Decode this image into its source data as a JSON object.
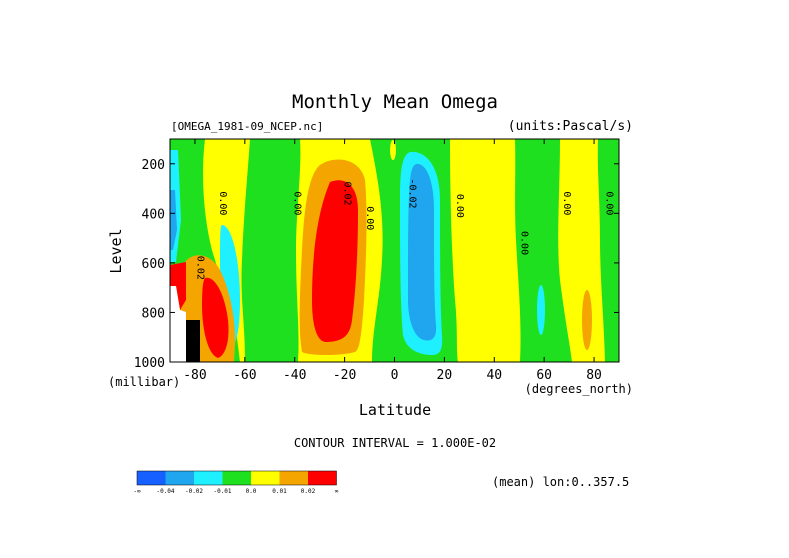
{
  "chart_data": {
    "type": "heatmap",
    "title": "Monthly Mean Omega",
    "file_label": "[OMEGA_1981-09_NCEP.nc]",
    "units_label": "(units:Pascal/s)",
    "xlabel": "Latitude",
    "x_unit": "(degrees_north)",
    "ylabel": "Level",
    "y_unit": "(millibar)",
    "xlim": [
      -90,
      90
    ],
    "ylim": [
      1000,
      100
    ],
    "y_scale": "linear",
    "x_ticks": [
      "-80",
      "-60",
      "-40",
      "-20",
      "0",
      "20",
      "40",
      "60",
      "80"
    ],
    "x_tick_values": [
      -80,
      -60,
      -40,
      -20,
      0,
      20,
      40,
      60,
      80
    ],
    "y_ticks": [
      "200",
      "400",
      "600",
      "800",
      "1000"
    ],
    "y_tick_values": [
      200,
      400,
      600,
      800,
      1000
    ],
    "contour_interval_text": "CONTOUR INTERVAL = 1.000E-02",
    "mean_text": "(mean) lon:0..357.5",
    "contour_labels": [
      {
        "text": "0.00",
        "lat": -70,
        "lev": 360
      },
      {
        "text": "0.00",
        "lat": -40,
        "lev": 360
      },
      {
        "text": "0.02",
        "lat": -20,
        "lev": 320
      },
      {
        "text": "0.00",
        "lat": -11,
        "lev": 420
      },
      {
        "text": "-0.02",
        "lat": 6,
        "lev": 320
      },
      {
        "text": "0.00",
        "lat": 25,
        "lev": 370
      },
      {
        "text": "0.00",
        "lat": 51,
        "lev": 520
      },
      {
        "text": "0.00",
        "lat": 68,
        "lev": 360
      },
      {
        "text": "0.00",
        "lat": 85,
        "lev": 360
      },
      {
        "text": "0.02",
        "lat": -79,
        "lev": 620
      }
    ],
    "colorbar": {
      "colors": [
        "#1560ff",
        "#1fa6ee",
        "#1ff0ff",
        "#1fe01f",
        "#ffff00",
        "#f5a500",
        "#ff0000"
      ],
      "labels": [
        "-∞",
        "-0.04",
        "-0.02",
        "-0.01",
        "0.0",
        "0.01",
        "0.02",
        "∞"
      ]
    },
    "regions_note": "filled contour bands of omega (Pa/s) by latitude and pressure level",
    "regions": [
      {
        "lev_top": 100,
        "lev_bot": 1000,
        "lat_w": -90,
        "lat_e": 90,
        "band": "yellow"
      },
      {
        "lev_top": 100,
        "lev_bot": 1000,
        "lat_w": -85,
        "lat_e": -66,
        "band": "green"
      },
      {
        "lev_top": 100,
        "lev_bot": 1000,
        "lat_w": -55,
        "lat_e": -32,
        "band": "green"
      },
      {
        "lev_top": 100,
        "lev_bot": 1000,
        "lat_w": -6,
        "lat_e": 30,
        "band": "green"
      },
      {
        "lev_top": 100,
        "lev_bot": 1000,
        "lat_w": 40,
        "lat_e": 63,
        "band": "green"
      },
      {
        "lev_top": 100,
        "lev_bot": 1000,
        "lat_w": 84,
        "lat_e": 90,
        "band": "green"
      }
    ]
  }
}
